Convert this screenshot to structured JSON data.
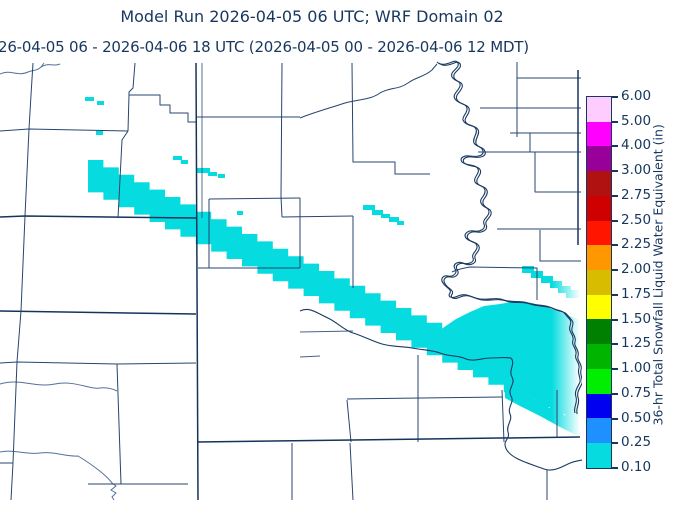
{
  "header": {
    "title": "Model Run 2026-04-05 06 UTC; WRF Domain 02",
    "subtitle": "26-04-05 06 - 2026-04-06 18 UTC  (2026-04-05 00 - 2026-04-06 12 MDT)"
  },
  "colors": {
    "background": "#FFFFFF",
    "text_navy": "#17375E",
    "county_line": "#27456E",
    "county_line_strong": "#16335C",
    "minor_river": "#54719A",
    "river": "#1B3A61",
    "snow_fill": "#06DCE0"
  },
  "colorbar": {
    "label": "36-hr Total Snowfall Liquid Water Equivalent (in)",
    "tick_labels_bottom_to_top": [
      "0.10",
      "0.25",
      "0.50",
      "0.75",
      "1.00",
      "1.25",
      "1.50",
      "1.75",
      "2.00",
      "2.25",
      "2.50",
      "2.75",
      "3.00",
      "4.00",
      "5.00",
      "6.00"
    ],
    "segment_colors_bottom_to_top": [
      "#06DCE0",
      "#1E90FF",
      "#0000F0",
      "#00EE00",
      "#00B400",
      "#008000",
      "#FFFF00",
      "#D8BC00",
      "#FF9800",
      "#FF1500",
      "#CE0000",
      "#B01111",
      "#990099",
      "#FF00FF",
      "#FFCCFF"
    ]
  },
  "chart_data": {
    "type": "heatmap",
    "title": "Model Run 2026-04-05 06 UTC; WRF Domain 02",
    "subtitle": "26-04-05 06 - 2026-04-06 18 UTC  (2026-04-05 00 - 2026-04-06 12 MDT)",
    "colorbar_label": "36-hr Total Snowfall Liquid Water Equivalent (in)",
    "levels_in": [
      0.1,
      0.25,
      0.5,
      0.75,
      1.0,
      1.25,
      1.5,
      1.75,
      2.0,
      2.25,
      2.5,
      2.75,
      3.0,
      4.0,
      5.0,
      6.0
    ],
    "shaded_field_note": "All shaded snowfall areas on the map fall in the lowest bin (0.10-0.25 in), drawn in cyan as a blocky SW-NE diagonal band with a wide lobe at the east edge plus scattered small patches",
    "legend_position": "right"
  }
}
